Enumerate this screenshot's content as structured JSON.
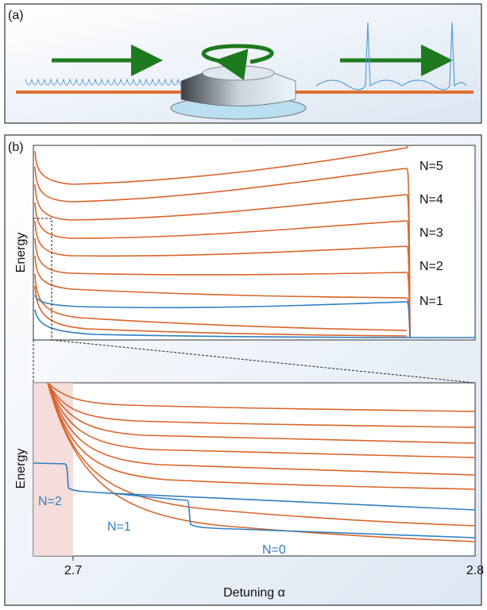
{
  "panel_a": {
    "label": "(a)"
  },
  "panel_b": {
    "label": "(b)",
    "upper": {
      "ylabel": "Energy",
      "branch_labels": [
        "N=5",
        "N=4",
        "N=3",
        "N=2",
        "N=1"
      ]
    },
    "lower": {
      "ylabel": "Energy",
      "branch_labels": [
        "N=2",
        "N=1",
        "N=0"
      ],
      "xticks": [
        "2.7",
        "2.8"
      ],
      "xlabel": "Detuning α"
    }
  }
}
